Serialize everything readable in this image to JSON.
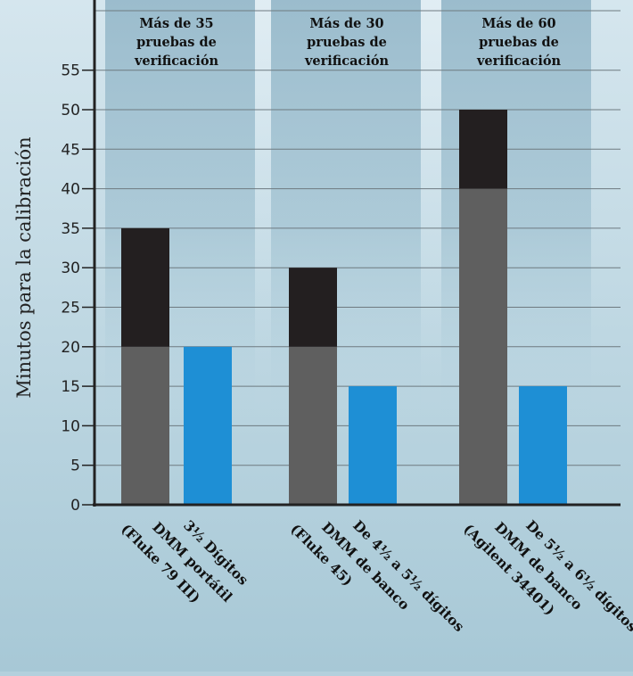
{
  "chart_data": {
    "type": "bar",
    "ylabel": "Minutos para la calibración",
    "ylim": [
      0,
      60
    ],
    "yticks": [
      0,
      5,
      10,
      15,
      20,
      25,
      30,
      35,
      40,
      45,
      50,
      55
    ],
    "grid": true,
    "groups": [
      {
        "header": [
          "Más de 35",
          "pruebas de",
          "verificación"
        ],
        "label": [
          "3½ Dígitos",
          "DMM portátil",
          "(Fluke 79 III)"
        ],
        "stacked": {
          "base": 20,
          "total": 35
        },
        "single": 20
      },
      {
        "header": [
          "Más de 30",
          "pruebas de",
          "verificación"
        ],
        "label": [
          "De 4½ a 5½ dígitos",
          "DMM de banco",
          "(Fluke 45)"
        ],
        "stacked": {
          "base": 20,
          "total": 30
        },
        "single": 15
      },
      {
        "header": [
          "Más de 60",
          "pruebas de",
          "verificación"
        ],
        "label": [
          "De 5½ a 6½ dígitos",
          "DMM de banco",
          "(Agilent 34401)"
        ],
        "stacked": {
          "base": 40,
          "total": 50
        },
        "single": 15
      }
    ],
    "colors": {
      "stack_base": "#5f5f5f",
      "stack_top": "#231f20",
      "single": "#1e8fd5",
      "panel": "#9fc0d0",
      "grid": "#6e7a80",
      "axis": "#222222"
    }
  }
}
